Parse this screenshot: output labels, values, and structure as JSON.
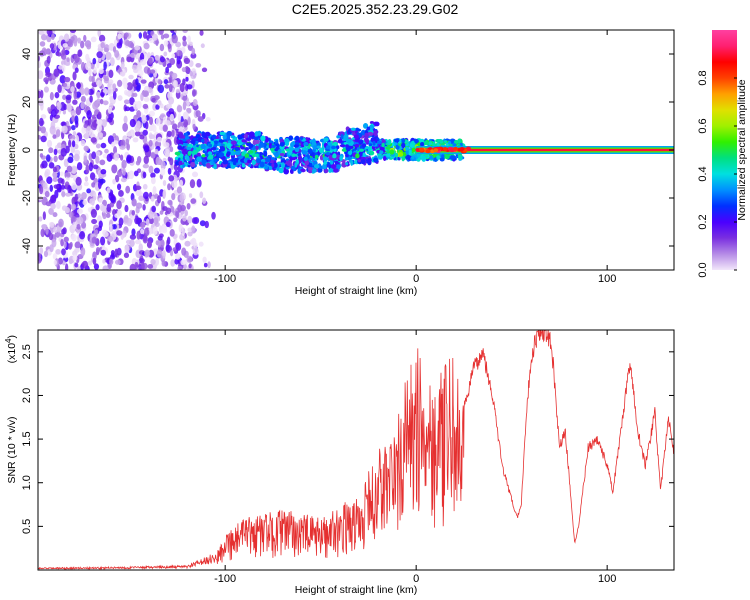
{
  "title": "C2E5.2025.352.23.29.G02",
  "chart_data": [
    {
      "type": "heatmap",
      "xlabel": "Height of straight line (km)",
      "ylabel": "Frequency (Hz)",
      "xlim": [
        -198,
        135
      ],
      "ylim": [
        -50,
        50
      ],
      "xticks": [
        -100,
        0,
        100
      ],
      "yticks": [
        -40,
        -20,
        0,
        20,
        40
      ],
      "colorbar": {
        "label": "Normalized spectral amplitude",
        "range": [
          0,
          1
        ],
        "ticks": [
          "0.0",
          "0.2",
          "0.4",
          "0.6",
          "0.8"
        ],
        "colors": [
          "#f2e6fa",
          "#b58be6",
          "#7a2fe0",
          "#4a00ff",
          "#0030ff",
          "#0090ff",
          "#00e0e0",
          "#00e080",
          "#30f000",
          "#a0f000",
          "#e0e000",
          "#ffa000",
          "#ff4000",
          "#ff0000",
          "#ff2070",
          "#ff40a0"
        ]
      },
      "regions": [
        {
          "x": [
            -198,
            -115
          ],
          "description_level": 0.15,
          "f_span": [
            -50,
            50
          ]
        },
        {
          "x": [
            -125,
            25
          ],
          "description_level": 0.35,
          "f_span": [
            -12,
            12
          ]
        },
        {
          "x": [
            0,
            135
          ],
          "description_level": 0.9,
          "f_span": [
            -1,
            1
          ]
        }
      ]
    },
    {
      "type": "line",
      "xlabel": "Height of straight line (km)",
      "ylabel": "SNR (10 * v/v)",
      "y_multiplier": "(x10",
      "y_multiplier_exp": "4",
      "y_multiplier_close": ")",
      "xlim": [
        -198,
        135
      ],
      "ylim": [
        0,
        2.75
      ],
      "xticks": [
        -100,
        0,
        100
      ],
      "yticks": [
        0.5,
        1.0,
        1.5,
        2.0,
        2.5
      ],
      "ytick_labels": [
        "0.5",
        "1.0",
        "1.5",
        "2.0",
        "2.5"
      ],
      "color": "#e53030",
      "envelope": {
        "x": [
          -198,
          -150,
          -120,
          -106,
          -100,
          -90,
          -70,
          -50,
          -40,
          -30,
          -20,
          -10,
          -5,
          0,
          5,
          10,
          15,
          20,
          25,
          30,
          35,
          40,
          45,
          50,
          53,
          55,
          58,
          60,
          62,
          65,
          68,
          70,
          72,
          75,
          78,
          80,
          83,
          85,
          90,
          95,
          100,
          103,
          108,
          112,
          116,
          120,
          125,
          128,
          132,
          135
        ],
        "y": [
          0.02,
          0.03,
          0.04,
          0.15,
          0.45,
          0.6,
          0.7,
          0.6,
          0.75,
          0.85,
          1.4,
          1.7,
          2.3,
          2.55,
          2.5,
          2.2,
          2.35,
          2.5,
          1.85,
          2.3,
          2.5,
          2.0,
          1.2,
          0.8,
          0.6,
          0.75,
          1.9,
          2.35,
          2.6,
          2.75,
          2.7,
          2.65,
          2.3,
          1.4,
          1.6,
          1.1,
          0.3,
          0.5,
          1.4,
          1.5,
          1.2,
          0.9,
          1.7,
          2.4,
          1.6,
          1.2,
          1.8,
          0.9,
          1.75,
          1.35
        ],
        "dense_from": -106,
        "dense_to": 25
      }
    }
  ]
}
